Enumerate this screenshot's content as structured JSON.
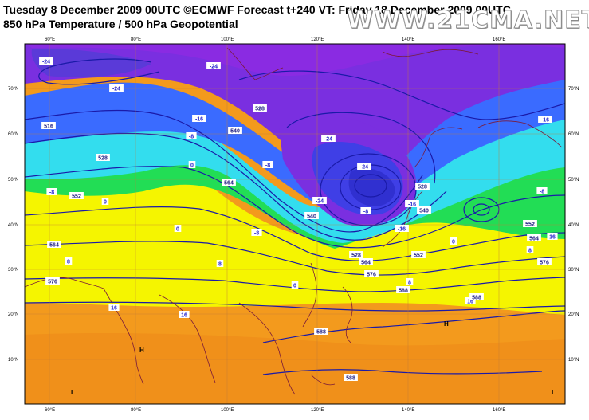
{
  "header": {
    "line1": "Tuesday 8 December 2009 00UTC ©ECMWF Forecast t+240 VT: Friday 18 December 2009 00UTC",
    "line2": "850 hPa Temperature / 500 hPa Geopotential",
    "watermark": "WWW.21CMA.NET"
  },
  "axes": {
    "longitude_labels": [
      "60°E",
      "80°E",
      "100°E",
      "120°E",
      "140°E",
      "160°E"
    ],
    "latitude_labels": [
      "70°N",
      "60°N",
      "50°N",
      "40°N",
      "30°N",
      "20°N",
      "10°N"
    ]
  },
  "temperature_labels": [
    "-24",
    "-24",
    "-24",
    "-16",
    "-16",
    "-24",
    "-24",
    "-8",
    "0",
    "-8",
    "0",
    "-16",
    "-8",
    "-24",
    "-16",
    "-8",
    "0",
    "-8",
    "0",
    "8",
    "8",
    "0",
    "8",
    "-8",
    "8",
    "16",
    "16",
    "16",
    "16"
  ],
  "geopotential_labels": [
    "528",
    "516",
    "528",
    "540",
    "552",
    "564",
    "576",
    "540",
    "552",
    "564",
    "576",
    "588",
    "528",
    "540",
    "552",
    "564",
    "576",
    "588",
    "588",
    "588",
    "528",
    "564"
  ],
  "pressure_centers": [
    "H",
    "H",
    "L",
    "L"
  ],
  "colors": {
    "purple": "#8a2be2",
    "violet": "#7a2fe0",
    "blue": "#3a6bff",
    "cyan": "#33ddee",
    "green": "#22dd55",
    "yellow": "#f5f500",
    "orange": "#f39a1d",
    "contour": "#1a1aa8",
    "coast": "#7a1a3a"
  }
}
